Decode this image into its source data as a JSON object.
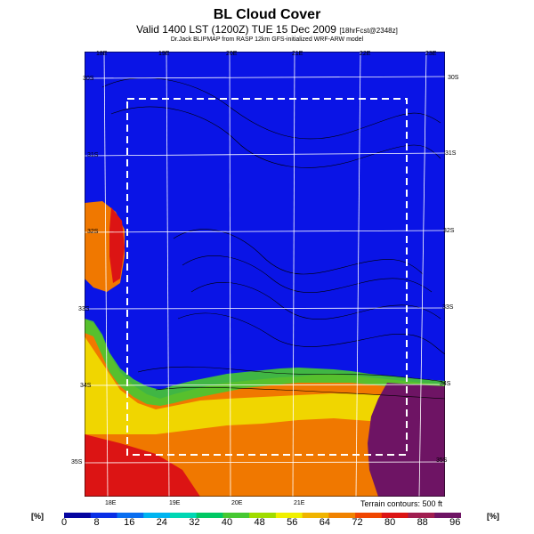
{
  "header": {
    "title": "BL Cloud Cover",
    "subtitle_main": "Valid 1400 LST (1200Z) TUE 15 Dec 2009",
    "subtitle_small": "[18hrFcst@2348z]",
    "credit": "Dr.Jack BLIPMAP from RASP 12km GFS-initialized WRF-ARW model"
  },
  "map": {
    "lon_labels_top": [
      "18E",
      "19E",
      "20E",
      "21E",
      "22E",
      "23E"
    ],
    "lon_labels_bottom": [
      "18E",
      "19E",
      "20E",
      "21E"
    ],
    "lat_labels_left": [
      "30S",
      "31S",
      "32S",
      "33S",
      "34S",
      "35S"
    ],
    "lat_labels_right": [
      "30S",
      "31S",
      "32S",
      "33S",
      "34S",
      "35S"
    ],
    "terrain_note": "Terrain contours: 500 ft"
  },
  "colorbar": {
    "unit_left": "[%]",
    "unit_right": "[%]",
    "labels": [
      "0",
      "8",
      "16",
      "24",
      "32",
      "40",
      "48",
      "56",
      "64",
      "72",
      "80",
      "88",
      "96"
    ],
    "colors": [
      "#0505a0",
      "#0a2fe6",
      "#0a6ef0",
      "#00b4f0",
      "#00d7b4",
      "#00c864",
      "#46c832",
      "#a0dc00",
      "#f0f000",
      "#f0b400",
      "#f08200",
      "#f04600",
      "#dc1414",
      "#a01e50",
      "#6e1464"
    ]
  }
}
